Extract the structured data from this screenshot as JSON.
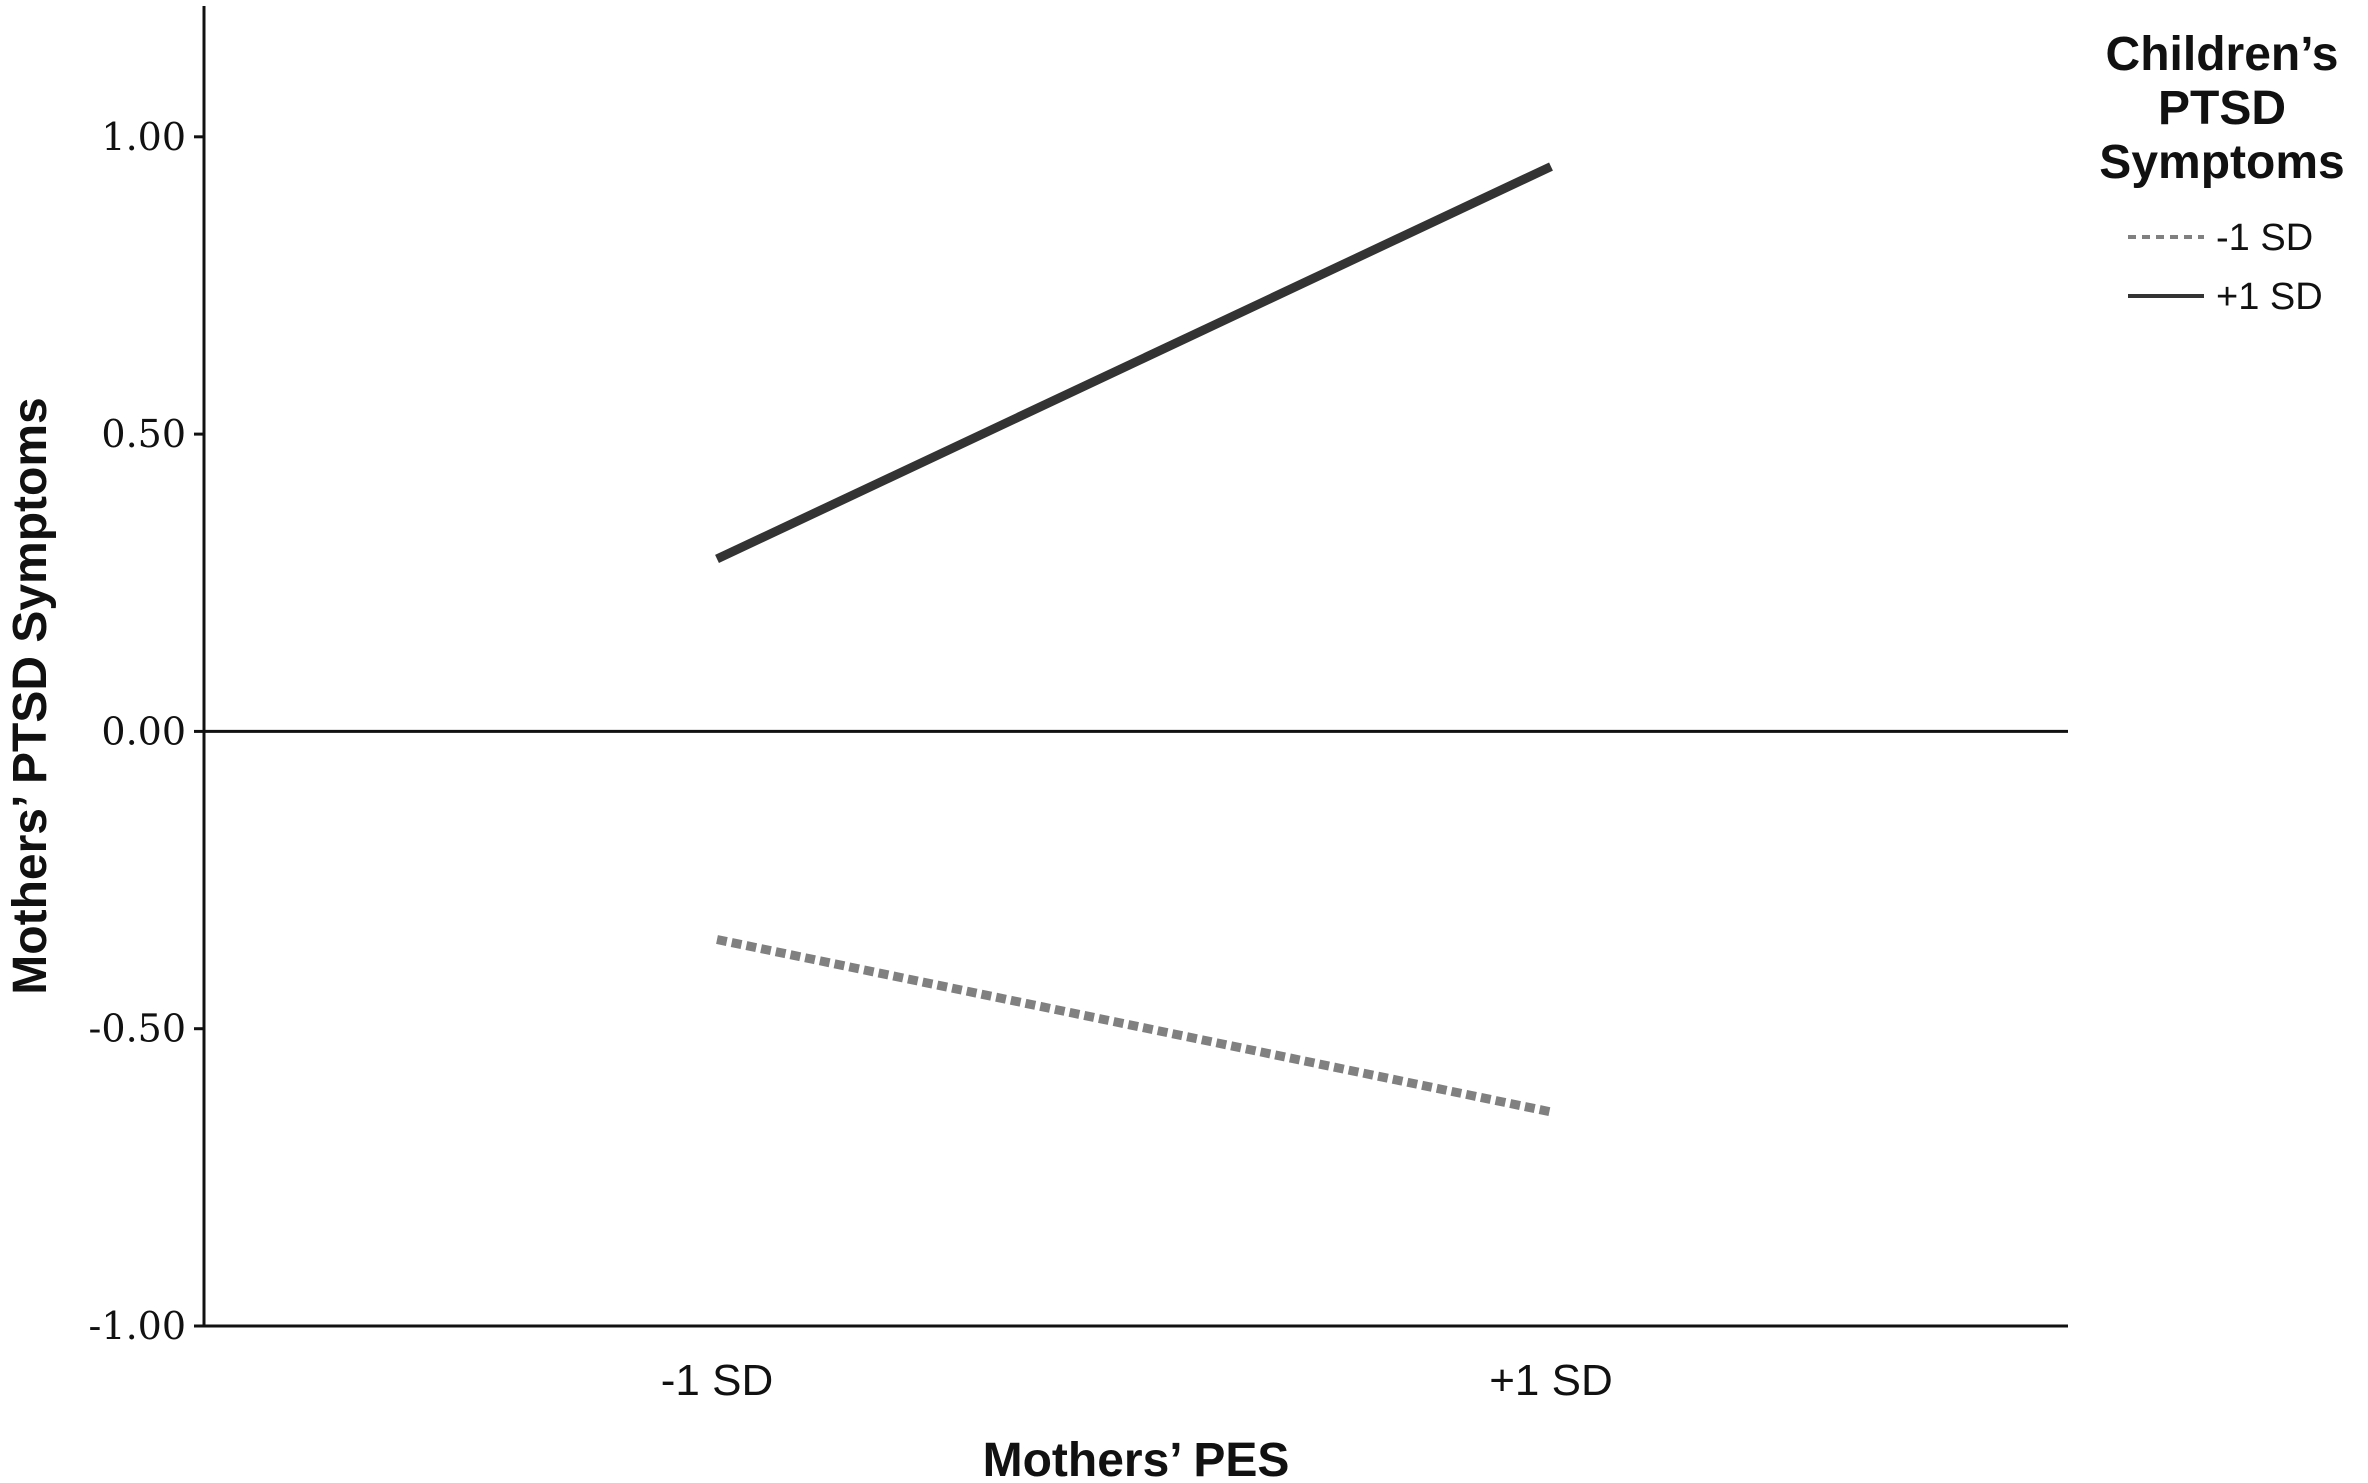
{
  "chart_data": {
    "type": "line",
    "xlabel": "Mothers’ PES",
    "ylabel": "Mothers’ PTSD Symptoms",
    "categories": [
      "-1 SD",
      "+1 SD"
    ],
    "ylim": [
      -1.0,
      1.22
    ],
    "yticks": [
      -1.0,
      -0.5,
      0.0,
      0.5,
      1.0
    ],
    "ytick_labels": [
      "-1.00",
      "-0.50",
      "0.00",
      "0.50",
      "1.00"
    ],
    "reference_line_y": 0.0,
    "grid": false,
    "legend": {
      "title": [
        "Children’s",
        "PTSD",
        "Symptoms"
      ],
      "placement": "top-right outside plot"
    },
    "series": [
      {
        "name": "-1 SD",
        "values": [
          -0.35,
          -0.64
        ],
        "style": "dashed",
        "color": "#808080"
      },
      {
        "name": "+1 SD",
        "values": [
          0.29,
          0.95
        ],
        "style": "solid",
        "color": "#333333"
      }
    ]
  }
}
